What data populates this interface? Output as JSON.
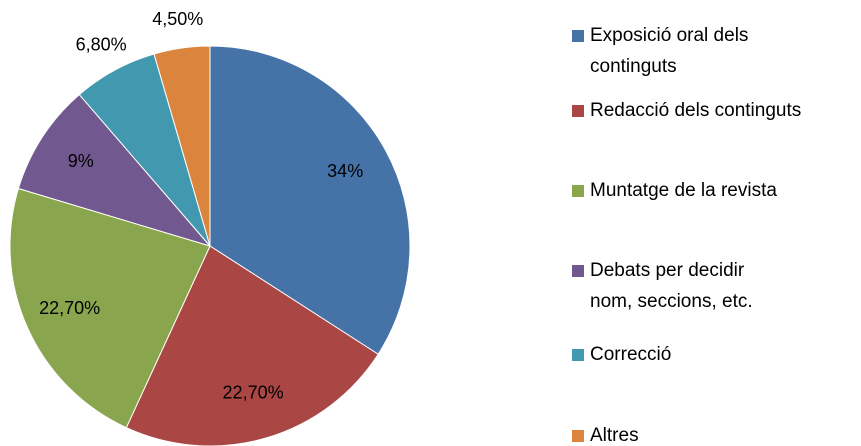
{
  "chart_data": {
    "type": "pie",
    "categories": [
      "Exposició oral dels continguts",
      "Redacció dels continguts",
      "Muntatge de la revista",
      "Debats per decidir nom, seccions, etc.",
      "Correcció",
      "Altres"
    ],
    "values": [
      34,
      22.7,
      22.7,
      9,
      6.8,
      4.5
    ],
    "value_labels": [
      "34%",
      "22,70%",
      "22,70%",
      "9%",
      "6,80%",
      "4,50%"
    ],
    "colors": [
      "#4572a7",
      "#aa4643",
      "#89a54e",
      "#71588f",
      "#4198af",
      "#db843d"
    ],
    "legend": "right"
  }
}
